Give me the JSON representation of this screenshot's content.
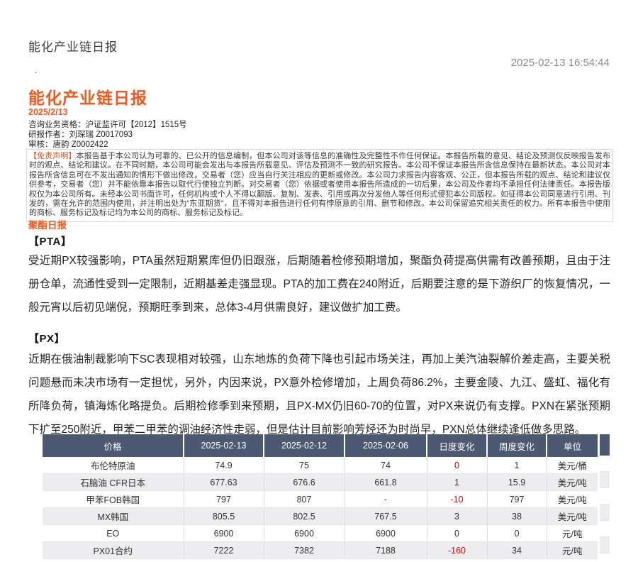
{
  "page": {
    "window_title": "能化产业链日报",
    "timestamp": "2025-02-13 16:54:44",
    "stray_dot": "."
  },
  "report": {
    "title": "能化产业链日报",
    "date": "2025/2/13",
    "qualification": "咨询业务资格：沪证监许可【2012】1515号",
    "author": "研报作者：刘琛瑞 Z0017093",
    "reviewer": "审核：唐韵 Z0002422",
    "disclaimer_label": "【免责声明】",
    "disclaimer_text": "本报告基于本公司认为可靠的、已公开的信息编制，但本公司对该等信息的准确性及完整性不作任何保证。本报告所载的意见、结论及预测仅反映报告发布时的观点、结论和建议。在不同时期，本公司可能会发出与本报告所载意见、评估及预测不一致的研究报告。本公司不保证本报告所含信息保持在最新状态。本公司对本报告所含信息可在不发出通知的情形下做出修改，交易者（您）应当自行关注相应的更新或修改。本公司力求报告内容客观、公正，但本报告所载的观点、结论和建议仅供参考，交易者（您）并不能依靠本报告以取代行使独立判断。对交易者（您）依据或者使用本报告所造成的一切后果，本公司及作者均不承担任何法律责任。本报告版权仅为本公司所有。未经本公司书面许可，任何机构或个人不得以翻版、复制、发表、引用或再次分发他人等任何形式侵犯本公司版权。如征得本公司同意进行引用、刊发的，需在允许的范围内使用，并注明出处为“东亚期货”，且不得对本报告进行任何有悖原意的引用、删节和修改。本公司保留追究相关责任的权力。所有本报告中使用的商标、服务标记及标记均为本公司的商标、服务标记及标记。"
  },
  "sections": {
    "daily_title": "聚酯日报",
    "pta_heading": "【PTA】",
    "pta_body": "受近期PX较强影响，PTA虽然短期累库但仍旧跟涨，后期随着检修预期增加，聚酯负荷提高供需有改善预期，且由于注册仓单，流通性受到一定限制，近期基差走强显现。PTA的加工费在240附近，后期要注意的是下游织厂的恢复情况，一般元宵以后初见端倪，预期旺季到来，总体3-4月供需良好，建议做扩加工费。",
    "px_heading": "【PX】",
    "px_body": "近期在俄油制裁影响下SC表现相对较强，山东地炼的负荷下降也引起市场关注，再加上美汽油裂解价差走高，主要关税问题悬而未决市场有一定担忧，另外，内因来说，PX意外检修增加，上周负荷86.2%，主要金陵、九江、盛虹、福化有所降负荷，镇海炼化略提负。后期检修季到来预期，且PX-MX仍旧60-70的位置，对PX来说仍有支撑。PXN在紧张预期下扩至250附近，甲苯二甲苯的调油经济性走弱，但是估计目前影响芳烃还为时尚早，PXN总体继续逢低做多思路。"
  },
  "price_table": {
    "headers": [
      "价格",
      "2025-02-13",
      "2025-02-12",
      "2025-02-06",
      "日度变化",
      "周度变化",
      "单位"
    ],
    "rows": [
      {
        "cells": [
          "布伦特原油",
          "74.9",
          "75",
          "74",
          "0",
          "1",
          "美元/桶"
        ],
        "daily_change_red": true
      },
      {
        "cells": [
          "石脑油 CFR日本",
          "677.63",
          "676.6",
          "661.8",
          "1",
          "15.9",
          "美元/吨"
        ],
        "daily_change_red": false
      },
      {
        "cells": [
          "甲苯FOB韩国",
          "797",
          "807",
          "-",
          "-10",
          "797",
          "美元/吨"
        ],
        "daily_change_red": true
      },
      {
        "cells": [
          "MX韩国",
          "805.5",
          "802.5",
          "767.5",
          "3",
          "38",
          "美元/吨"
        ],
        "daily_change_red": false
      },
      {
        "cells": [
          "EO",
          "6900",
          "6900",
          "6900",
          "0",
          "0",
          "元/吨"
        ],
        "daily_change_red": false
      },
      {
        "cells": [
          "PX01合约",
          "7222",
          "7382",
          "7188",
          "-160",
          "34",
          "元/吨"
        ],
        "daily_change_red": true
      }
    ],
    "colors": {
      "header_bg": "#4d5873",
      "stripe_bg": "#ededf0",
      "negative_red": "#e60000",
      "accent_orange": "#f4581c"
    }
  }
}
